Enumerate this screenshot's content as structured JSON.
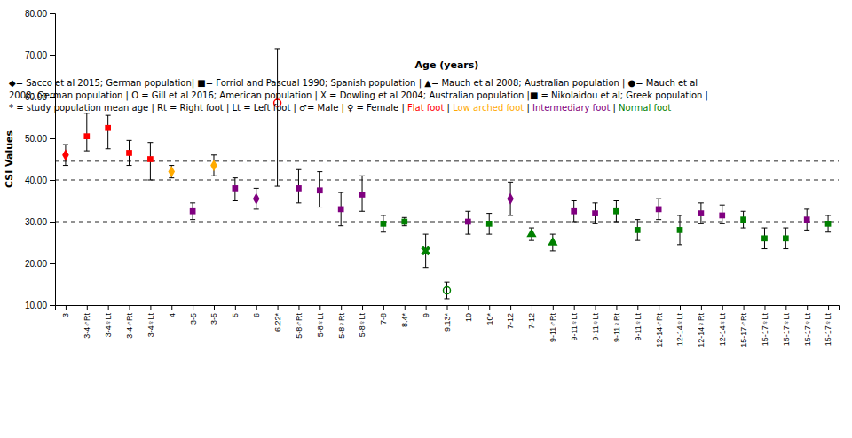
{
  "chart_data": {
    "type": "scatter",
    "xlabel": "Age (years)",
    "ylabel": "CSI Values",
    "categories": [
      "3",
      "3-4♂Rt",
      "3-4♀Lt",
      "3-4♂Rt",
      "3-4♀Lt",
      "4",
      "3-5",
      "3-5",
      "5",
      "6",
      "6.22*",
      "5-8♂Rt",
      "5-8♀Lt",
      "5-8♀Rt",
      "5-8♀Lt",
      "7-8",
      "8.4*",
      "9",
      "9.13*",
      "10",
      "10*",
      "7-12",
      "7-12",
      "9-11♂Rt",
      "9-11♀Lt",
      "9-11♀Lt",
      "9-11♀Rt",
      "9-11♀Lt",
      "12-14♂Rt",
      "12-14♀Lt",
      "12-14♀Rt",
      "12-14♀Lt",
      "15-17♂Rt",
      "15-17♀Lt",
      "15-17♀Lt",
      "15-17♀Lt",
      "15-17♀Lt"
    ],
    "values": [
      46.0,
      50.5,
      52.5,
      46.5,
      45.0,
      42.0,
      32.5,
      43.5,
      38.0,
      35.5,
      58.5,
      38.0,
      37.5,
      33.0,
      36.5,
      29.5,
      30.0,
      23.0,
      13.5,
      30.0,
      29.5,
      35.5,
      27.0,
      25.0,
      32.5,
      32.0,
      32.5,
      28.0,
      33.0,
      28.0,
      32.0,
      31.5,
      30.5,
      26.0,
      26.0,
      30.5,
      29.5
    ],
    "error_low": [
      2.5,
      3.5,
      5.0,
      3.0,
      5.0,
      1.5,
      2.0,
      2.5,
      3.0,
      2.5,
      20.0,
      3.5,
      4.0,
      4.0,
      4.0,
      2.0,
      1.0,
      4.0,
      2.0,
      3.0,
      2.5,
      4.0,
      1.5,
      2.0,
      2.5,
      2.5,
      2.5,
      2.5,
      2.5,
      3.5,
      2.5,
      2.0,
      2.0,
      2.5,
      2.5,
      2.5,
      2.0
    ],
    "error_high": [
      2.5,
      5.5,
      3.0,
      3.0,
      4.0,
      1.5,
      2.0,
      2.5,
      2.5,
      2.5,
      13.0,
      4.5,
      4.5,
      4.0,
      4.5,
      2.0,
      1.0,
      4.0,
      2.0,
      2.5,
      2.5,
      4.0,
      1.5,
      2.0,
      2.5,
      2.5,
      2.5,
      2.5,
      2.5,
      3.5,
      2.5,
      2.5,
      2.0,
      2.5,
      2.5,
      2.5,
      2.0
    ],
    "colors": [
      "#ff0000",
      "#ff0000",
      "#ff0000",
      "#ff0000",
      "#ff0000",
      "#ffaa00",
      "#800080",
      "#ffaa00",
      "#800080",
      "#800080",
      "#ff0000",
      "#800080",
      "#800080",
      "#800080",
      "#800080",
      "#008000",
      "#008000",
      "#008000",
      "#008000",
      "#800080",
      "#008000",
      "#800080",
      "#008000",
      "#008000",
      "#800080",
      "#800080",
      "#008000",
      "#008000",
      "#800080",
      "#008000",
      "#800080",
      "#800080",
      "#008000",
      "#008000",
      "#008000",
      "#800080",
      "#008000"
    ],
    "markers": [
      "diamond",
      "square",
      "square",
      "square",
      "square",
      "diamond",
      "square",
      "diamond",
      "square",
      "diamond",
      "circle-open",
      "square",
      "square",
      "square",
      "square",
      "square",
      "square",
      "x",
      "circle-open",
      "square",
      "square",
      "diamond",
      "triangle",
      "triangle",
      "square",
      "square",
      "square",
      "square",
      "square",
      "square",
      "square",
      "square",
      "square",
      "square",
      "square",
      "square",
      "square"
    ],
    "hlines": [
      44.5,
      40.0,
      30.0
    ],
    "ylim": [
      10.0,
      80.0
    ],
    "yticks": [
      {
        "value": 10.0,
        "label": "10.00"
      },
      {
        "value": 20.0,
        "label": "20.00"
      },
      {
        "value": 30.0,
        "label": "30.00"
      },
      {
        "value": 40.0,
        "label": "40.00"
      },
      {
        "value": 50.0,
        "label": "50.00"
      },
      {
        "value": 60.0,
        "label": "60.00"
      },
      {
        "value": 70.0,
        "label": "70.00"
      },
      {
        "value": 80.0,
        "label": "80.00"
      }
    ],
    "annotations": [
      [
        {
          "text": "◆= Sacco et al 2015; German population| ■= Forriol and Pascual 1990; Spanish population | ▲= Mauch et al 2008; Australian population | ●= Mauch et al",
          "color": "black"
        }
      ],
      [
        {
          "text": "2008; German population | O = Gill et al 2016; American population | X = Dowling et al 2004; Australian population |■ = Nikolaidou et al; Greek population |",
          "color": "black"
        }
      ],
      [
        {
          "text": "* = study population mean age | Rt = Right foot | Lt = Left foot | ♂= Male | ♀ = Female | ",
          "color": "black"
        },
        {
          "text": "Flat foot",
          "color": "#ff0000"
        },
        {
          "text": " | ",
          "color": "black"
        },
        {
          "text": "Low arched foot",
          "color": "#ffaa00"
        },
        {
          "text": " | ",
          "color": "black"
        },
        {
          "text": "Intermediary foot",
          "color": "#800080"
        },
        {
          "text": " | ",
          "color": "black"
        },
        {
          "text": "Normal foot",
          "color": "#008000"
        }
      ]
    ]
  }
}
